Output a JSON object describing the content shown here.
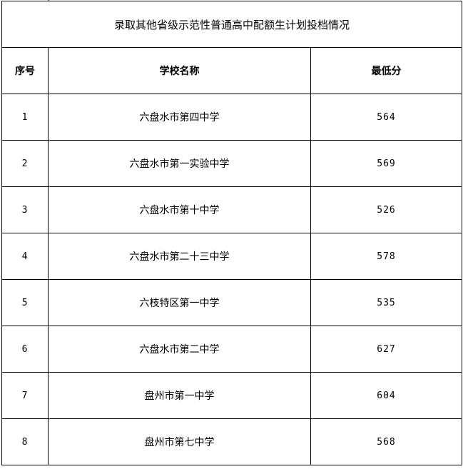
{
  "title": "录取其他省级示范性普通高中配额生计划投档情况",
  "headers": [
    "序号",
    "学校名称",
    "最低分"
  ],
  "rows": [
    [
      "1",
      "六盘水市第四中学",
      "564"
    ],
    [
      "2",
      "六盘水市第一实验中学",
      "569"
    ],
    [
      "3",
      "六盘水市第十中学",
      "526"
    ],
    [
      "4",
      "六盘水市第二十三中学",
      "578"
    ],
    [
      "5",
      "六枝特区第一中学",
      "535"
    ],
    [
      "6",
      "六盘水市第二中学",
      "627"
    ],
    [
      "7",
      "盘州市第一中学",
      "604"
    ],
    [
      "8",
      "盘州市第七中学",
      "568"
    ]
  ]
}
